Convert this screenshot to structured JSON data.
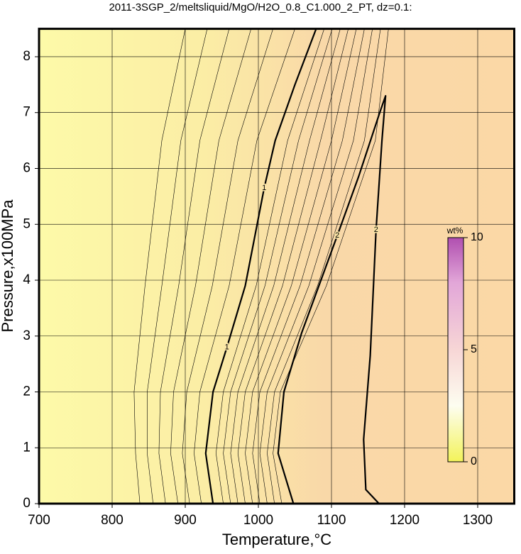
{
  "chart_data": {
    "type": "contour",
    "title": "2011-3SGP_2/meltsliquid/MgO/H2O_0.8_C1.000_2_PT, dz=0.1:",
    "xlabel": "Temperature,°C",
    "ylabel": "Pressure,x100MPa",
    "xlim": [
      700,
      1350
    ],
    "ylim": [
      0,
      8.5
    ],
    "xticks": [
      700,
      800,
      900,
      1000,
      1100,
      1200,
      1300
    ],
    "yticks": [
      0,
      1,
      2,
      3,
      4,
      5,
      6,
      7,
      8
    ],
    "grid": true,
    "color": "#000000",
    "contours": [
      {
        "x": [
          838,
          832,
          830,
          845,
          868,
          900
        ],
        "y": [
          0,
          0.9,
          2,
          3.9,
          6.5,
          8.5
        ],
        "linewidth": 0.6
      },
      {
        "x": [
          856,
          848,
          848,
          868,
          894,
          930
        ],
        "y": [
          0,
          0.9,
          2,
          3.9,
          6.5,
          8.5
        ],
        "linewidth": 0.6
      },
      {
        "x": [
          873,
          864,
          866,
          891,
          920,
          960
        ],
        "y": [
          0,
          0.9,
          2,
          3.9,
          6.5,
          8.5
        ],
        "linewidth": 0.6
      },
      {
        "x": [
          890,
          880,
          884,
          914,
          946,
          990
        ],
        "y": [
          0,
          0.9,
          2,
          3.9,
          6.5,
          8.5
        ],
        "linewidth": 0.6
      },
      {
        "x": [
          906,
          896,
          902,
          937,
          972,
          1020
        ],
        "y": [
          0,
          0.9,
          2,
          3.9,
          6.5,
          8.5
        ],
        "linewidth": 0.6
      },
      {
        "x": [
          922,
          912,
          920,
          960,
          998,
          1050
        ],
        "y": [
          0,
          0.9,
          2,
          3.9,
          6.5,
          8.5
        ],
        "linewidth": 0.6
      },
      {
        "x": [
          938,
          928,
          938,
          957,
          982,
          1008,
          1023,
          1050,
          1079
        ],
        "y": [
          0,
          0.9,
          2.0,
          2.8,
          3.9,
          5.65,
          6.5,
          7.5,
          8.5
        ],
        "linewidth": 2.2
      },
      {
        "x": [
          952,
          942,
          952,
          997,
          1040,
          1090
        ],
        "y": [
          0,
          0.9,
          2,
          3.9,
          6.5,
          8.5
        ],
        "linewidth": 0.6
      },
      {
        "x": [
          962,
          952,
          962,
          1009,
          1055,
          1101
        ],
        "y": [
          0,
          0.9,
          2,
          3.9,
          6.5,
          8.5
        ],
        "linewidth": 0.6
      },
      {
        "x": [
          972,
          962,
          972,
          1021,
          1070,
          1112
        ],
        "y": [
          0,
          0.9,
          2,
          3.9,
          6.5,
          8.5
        ],
        "linewidth": 0.6
      },
      {
        "x": [
          982,
          972,
          982,
          1033,
          1085,
          1123
        ],
        "y": [
          0,
          0.9,
          2,
          3.9,
          6.5,
          8.5
        ],
        "linewidth": 0.6
      },
      {
        "x": [
          992,
          982,
          992,
          1045,
          1100,
          1134
        ],
        "y": [
          0,
          0.9,
          2,
          3.9,
          6.5,
          8.5
        ],
        "linewidth": 0.6
      },
      {
        "x": [
          1002,
          992,
          1002,
          1057,
          1115,
          1145
        ],
        "y": [
          0,
          0.9,
          2,
          3.9,
          6.5,
          8.5
        ],
        "linewidth": 0.6
      },
      {
        "x": [
          1012,
          1002,
          1012,
          1069,
          1130,
          1156
        ],
        "y": [
          0,
          0.9,
          2,
          3.9,
          6.5,
          8.5
        ],
        "linewidth": 0.6
      },
      {
        "x": [
          1022,
          1012,
          1022,
          1081,
          1145,
          1167
        ],
        "y": [
          0,
          0.9,
          2,
          3.9,
          6.5,
          8.5
        ],
        "linewidth": 0.6
      },
      {
        "x": [
          1032,
          1020,
          1030,
          1093,
          1160,
          1178
        ],
        "y": [
          0,
          0.9,
          2,
          3.9,
          6.5,
          8.5
        ],
        "linewidth": 0.6
      },
      {
        "x": [
          1048,
          1027,
          1035,
          1059,
          1108,
          1137,
          1166,
          1174,
          1169,
          1161,
          1153,
          1144,
          1147,
          1165
        ],
        "y": [
          0,
          0.9,
          2.0,
          3.05,
          4.8,
          5.85,
          7.0,
          7.3,
          6.5,
          4.9,
          2.65,
          1.15,
          0.25,
          0
        ],
        "linewidth": 2.2
      }
    ],
    "contour_labels": [
      {
        "text": "1",
        "x": 1008,
        "y": 5.65
      },
      {
        "text": "1",
        "x": 957,
        "y": 2.8
      },
      {
        "text": "2",
        "x": 1108,
        "y": 4.8
      },
      {
        "text": "2",
        "x": 1161,
        "y": 4.9
      }
    ],
    "colorbar": {
      "label": "wt%",
      "lim": [
        0,
        10
      ],
      "ticks": [
        0,
        5,
        10
      ]
    }
  }
}
